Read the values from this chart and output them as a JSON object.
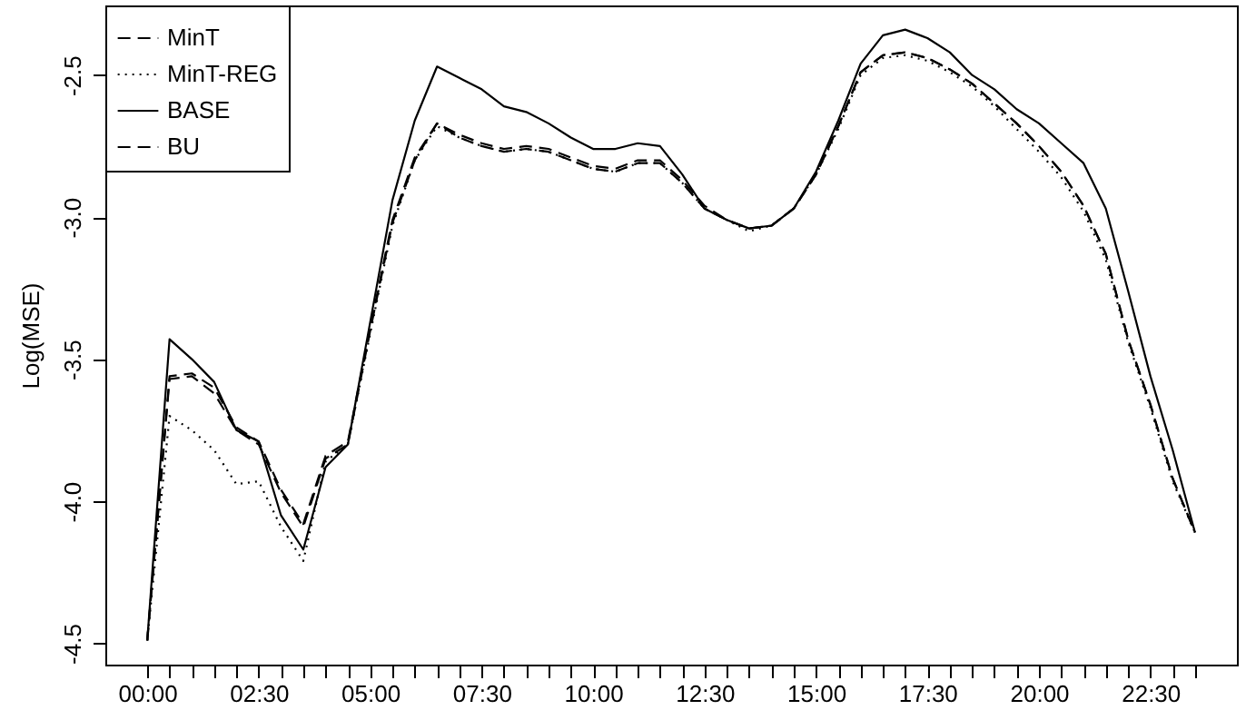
{
  "chart_data": {
    "type": "line",
    "ylabel": "Log(MSE)",
    "x": [
      0,
      0.5,
      1,
      1.5,
      2,
      2.5,
      3,
      3.5,
      4,
      4.5,
      5,
      5.5,
      6,
      6.5,
      7,
      7.5,
      8,
      8.5,
      9,
      9.5,
      10,
      10.5,
      11,
      11.5,
      12,
      12.5,
      13,
      13.5,
      14,
      14.5,
      15,
      15.5,
      16,
      16.5,
      17,
      17.5,
      18,
      18.5,
      19,
      19.5,
      20,
      20.5,
      21,
      21.5,
      22,
      22.5,
      23,
      23.5
    ],
    "series": [
      {
        "name": "MinT",
        "color": "#000000",
        "line_style": "dashed",
        "values": [
          -4.49,
          -3.57,
          -3.56,
          -3.62,
          -3.75,
          -3.8,
          -3.97,
          -4.09,
          -3.85,
          -3.8,
          -3.4,
          -3.02,
          -2.8,
          -2.67,
          -2.72,
          -2.75,
          -2.77,
          -2.76,
          -2.77,
          -2.8,
          -2.83,
          -2.84,
          -2.81,
          -2.81,
          -2.88,
          -2.97,
          -3.01,
          -3.04,
          -3.03,
          -2.97,
          -2.85,
          -2.68,
          -2.49,
          -2.43,
          -2.42,
          -2.44,
          -2.48,
          -2.53,
          -2.6,
          -2.67,
          -2.75,
          -2.84,
          -2.96,
          -3.13,
          -3.43,
          -3.66,
          -3.92,
          -4.11
        ]
      },
      {
        "name": "MinT-REG",
        "color": "#000000",
        "line_style": "dotted",
        "values": [
          -4.49,
          -3.7,
          -3.75,
          -3.82,
          -3.94,
          -3.93,
          -4.09,
          -4.21,
          -3.86,
          -3.8,
          -3.41,
          -3.03,
          -2.8,
          -2.68,
          -2.72,
          -2.75,
          -2.77,
          -2.76,
          -2.77,
          -2.8,
          -2.83,
          -2.84,
          -2.81,
          -2.81,
          -2.88,
          -2.97,
          -3.01,
          -3.05,
          -3.03,
          -2.97,
          -2.85,
          -2.69,
          -2.5,
          -2.44,
          -2.43,
          -2.45,
          -2.49,
          -2.54,
          -2.61,
          -2.69,
          -2.77,
          -2.86,
          -2.98,
          -3.15,
          -3.44,
          -3.67,
          -3.93,
          -4.11
        ]
      },
      {
        "name": "BASE",
        "color": "#000000",
        "line_style": "solid",
        "values": [
          -4.49,
          -3.43,
          -3.5,
          -3.58,
          -3.75,
          -3.79,
          -4.05,
          -4.17,
          -3.88,
          -3.8,
          -3.37,
          -2.94,
          -2.66,
          -2.47,
          -2.51,
          -2.55,
          -2.61,
          -2.63,
          -2.67,
          -2.72,
          -2.76,
          -2.76,
          -2.74,
          -2.75,
          -2.85,
          -2.97,
          -3.01,
          -3.04,
          -3.03,
          -2.97,
          -2.84,
          -2.66,
          -2.46,
          -2.36,
          -2.34,
          -2.37,
          -2.42,
          -2.5,
          -2.55,
          -2.62,
          -2.67,
          -2.74,
          -2.81,
          -2.97,
          -3.26,
          -3.56,
          -3.82,
          -4.11
        ]
      },
      {
        "name": "BU",
        "color": "#000000",
        "line_style": "dashed",
        "values": [
          -4.49,
          -3.56,
          -3.55,
          -3.6,
          -3.74,
          -3.79,
          -3.96,
          -4.08,
          -3.84,
          -3.79,
          -3.39,
          -3.01,
          -2.79,
          -2.67,
          -2.71,
          -2.74,
          -2.76,
          -2.75,
          -2.76,
          -2.79,
          -2.82,
          -2.83,
          -2.8,
          -2.8,
          -2.87,
          -2.96,
          -3.01,
          -3.04,
          -3.03,
          -2.97,
          -2.85,
          -2.68,
          -2.49,
          -2.43,
          -2.42,
          -2.44,
          -2.48,
          -2.53,
          -2.6,
          -2.67,
          -2.75,
          -2.84,
          -2.96,
          -3.13,
          -3.43,
          -3.66,
          -3.92,
          -4.11
        ]
      }
    ],
    "xlim": [
      -0.94,
      24.44
    ],
    "xticks": [
      {
        "value": 0,
        "label": "00:00"
      },
      {
        "value": 0.5,
        "label": null
      },
      {
        "value": 1,
        "label": null
      },
      {
        "value": 1.5,
        "label": null
      },
      {
        "value": 2,
        "label": null
      },
      {
        "value": 2.5,
        "label": "02:30"
      },
      {
        "value": 3,
        "label": null
      },
      {
        "value": 3.5,
        "label": null
      },
      {
        "value": 4,
        "label": null
      },
      {
        "value": 4.5,
        "label": null
      },
      {
        "value": 5,
        "label": "05:00"
      },
      {
        "value": 5.5,
        "label": null
      },
      {
        "value": 6,
        "label": null
      },
      {
        "value": 6.5,
        "label": null
      },
      {
        "value": 7,
        "label": null
      },
      {
        "value": 7.5,
        "label": "07:30"
      },
      {
        "value": 8,
        "label": null
      },
      {
        "value": 8.5,
        "label": null
      },
      {
        "value": 9,
        "label": null
      },
      {
        "value": 9.5,
        "label": null
      },
      {
        "value": 10,
        "label": "10:00"
      },
      {
        "value": 10.5,
        "label": null
      },
      {
        "value": 11,
        "label": null
      },
      {
        "value": 11.5,
        "label": null
      },
      {
        "value": 12,
        "label": null
      },
      {
        "value": 12.5,
        "label": "12:30"
      },
      {
        "value": 13,
        "label": null
      },
      {
        "value": 13.5,
        "label": null
      },
      {
        "value": 14,
        "label": null
      },
      {
        "value": 14.5,
        "label": null
      },
      {
        "value": 15,
        "label": "15:00"
      },
      {
        "value": 15.5,
        "label": null
      },
      {
        "value": 16,
        "label": null
      },
      {
        "value": 16.5,
        "label": null
      },
      {
        "value": 17,
        "label": null
      },
      {
        "value": 17.5,
        "label": "17:30"
      },
      {
        "value": 18,
        "label": null
      },
      {
        "value": 18.5,
        "label": null
      },
      {
        "value": 19,
        "label": null
      },
      {
        "value": 19.5,
        "label": null
      },
      {
        "value": 20,
        "label": "20:00"
      },
      {
        "value": 20.5,
        "label": null
      },
      {
        "value": 21,
        "label": null
      },
      {
        "value": 21.5,
        "label": null
      },
      {
        "value": 22,
        "label": null
      },
      {
        "value": 22.5,
        "label": "22:30"
      },
      {
        "value": 23,
        "label": null
      },
      {
        "value": 23.5,
        "label": null
      }
    ],
    "ylim": [
      -4.575,
      -2.255
    ],
    "yticks": [
      -4.5,
      {
        "value": -4,
        "label": "-4.0"
      },
      -3.5,
      {
        "value": -3,
        "label": "-3.0"
      },
      -2.5
    ],
    "grid": false,
    "legend": "top left"
  }
}
